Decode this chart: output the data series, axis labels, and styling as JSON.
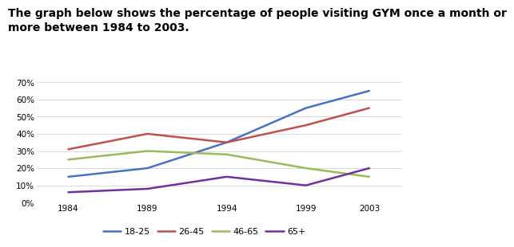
{
  "title": "The graph below shows the percentage of people visiting GYM once a month or\nmore between 1984 to 2003.",
  "years": [
    1984,
    1989,
    1994,
    1999,
    2003
  ],
  "series": {
    "18-25": {
      "values": [
        15,
        20,
        35,
        55,
        65
      ],
      "color": "#4472C4",
      "label": "18-25"
    },
    "26-45": {
      "values": [
        31,
        40,
        35,
        45,
        55
      ],
      "color": "#C0504D",
      "label": "26-45"
    },
    "46-65": {
      "values": [
        25,
        30,
        28,
        20,
        15
      ],
      "color": "#9BBB59",
      "label": "46-65"
    },
    "65+": {
      "values": [
        6,
        8,
        15,
        10,
        20
      ],
      "color": "#7030A0",
      "label": "65+"
    }
  },
  "ylim": [
    0,
    70
  ],
  "yticks": [
    0,
    10,
    20,
    30,
    40,
    50,
    60,
    70
  ],
  "xticks": [
    1984,
    1989,
    1994,
    1999,
    2003
  ],
  "xlim": [
    1982,
    2005
  ],
  "background_color": "#ffffff",
  "legend_order": [
    "18-25",
    "26-45",
    "46-65",
    "65+"
  ],
  "title_fontsize": 10,
  "tick_fontsize": 7.5,
  "legend_fontsize": 8,
  "line_width": 1.8
}
